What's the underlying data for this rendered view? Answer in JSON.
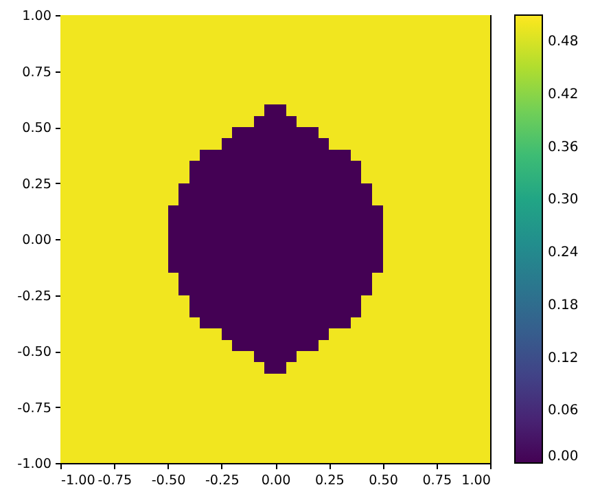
{
  "chart_data": {
    "type": "heatmap",
    "xlim": [
      -1,
      1
    ],
    "ylim": [
      -1,
      1
    ],
    "xticks": [
      {
        "value": -1,
        "label": "-1.00"
      },
      {
        "value": -0.75,
        "label": "-0.75"
      },
      {
        "value": -0.5,
        "label": "-0.50"
      },
      {
        "value": -0.25,
        "label": "-0.25"
      },
      {
        "value": 0,
        "label": "0.00"
      },
      {
        "value": 0.25,
        "label": "0.25"
      },
      {
        "value": 0.5,
        "label": "0.50"
      },
      {
        "value": 0.75,
        "label": "0.75"
      },
      {
        "value": 1,
        "label": "1.00"
      }
    ],
    "yticks": [
      {
        "value": -1,
        "label": "-1.00"
      },
      {
        "value": -0.75,
        "label": "-0.75"
      },
      {
        "value": -0.5,
        "label": "-0.50"
      },
      {
        "value": -0.25,
        "label": "-0.25"
      },
      {
        "value": 0,
        "label": "0.00"
      },
      {
        "value": 0.25,
        "label": "0.25"
      },
      {
        "value": 0.5,
        "label": "0.50"
      },
      {
        "value": 0.75,
        "label": "0.75"
      },
      {
        "value": 1,
        "label": "1.00"
      }
    ],
    "clim": [
      0,
      0.51
    ],
    "cticks": [
      {
        "value": 0,
        "label": "0.00"
      },
      {
        "value": 0.06,
        "label": "0.06"
      },
      {
        "value": 0.12,
        "label": "0.12"
      },
      {
        "value": 0.18,
        "label": "0.18"
      },
      {
        "value": 0.24,
        "label": "0.24"
      },
      {
        "value": 0.3,
        "label": "0.30"
      },
      {
        "value": 0.36,
        "label": "0.36"
      },
      {
        "value": 0.42,
        "label": "0.42"
      },
      {
        "value": 0.48,
        "label": "0.48"
      }
    ],
    "cells": [
      [
        0.5,
        0.5,
        0.5,
        0.5,
        0.5,
        0.5,
        0.5,
        0.5,
        0.5,
        0.5,
        0.5,
        0.5,
        0.5,
        0.5,
        0.5,
        0.5,
        0.5,
        0.5,
        0.5,
        0.5,
        0.5,
        0.5,
        0.5,
        0.5,
        0.5,
        0.5,
        0.5,
        0.5,
        0.5,
        0.5,
        0.5,
        0.5,
        0.5,
        0.5,
        0.5,
        0.5,
        0.5,
        0.5,
        0.5,
        0.5
      ],
      [
        0.5,
        0.5,
        0.5,
        0.5,
        0.5,
        0.5,
        0.5,
        0.5,
        0.5,
        0.5,
        0.5,
        0.5,
        0.5,
        0.5,
        0.5,
        0.5,
        0.5,
        0.5,
        0.5,
        0.5,
        0.5,
        0.5,
        0.5,
        0.5,
        0.5,
        0.5,
        0.5,
        0.5,
        0.5,
        0.5,
        0.5,
        0.5,
        0.5,
        0.5,
        0.5,
        0.5,
        0.5,
        0.5,
        0.5,
        0.5
      ],
      [
        0.5,
        0.5,
        0.5,
        0.5,
        0.5,
        0.5,
        0.5,
        0.5,
        0.5,
        0.5,
        0.5,
        0.5,
        0.5,
        0.5,
        0.5,
        0.5,
        0.5,
        0.5,
        0.5,
        0.5,
        0.5,
        0.5,
        0.5,
        0.5,
        0.5,
        0.5,
        0.5,
        0.5,
        0.5,
        0.5,
        0.5,
        0.5,
        0.5,
        0.5,
        0.5,
        0.5,
        0.5,
        0.5,
        0.5,
        0.5
      ],
      [
        0.5,
        0.5,
        0.5,
        0.5,
        0.5,
        0.5,
        0.5,
        0.5,
        0.5,
        0.5,
        0.5,
        0.5,
        0.5,
        0.5,
        0.5,
        0.5,
        0.5,
        0.5,
        0.5,
        0.5,
        0.5,
        0.5,
        0.5,
        0.5,
        0.5,
        0.5,
        0.5,
        0.5,
        0.5,
        0.5,
        0.5,
        0.5,
        0.5,
        0.5,
        0.5,
        0.5,
        0.5,
        0.5,
        0.5,
        0.5
      ],
      [
        0.5,
        0.5,
        0.5,
        0.5,
        0.5,
        0.5,
        0.5,
        0.5,
        0.5,
        0.5,
        0.5,
        0.5,
        0.5,
        0.5,
        0.5,
        0.5,
        0.5,
        0.5,
        0.5,
        0.5,
        0.5,
        0.5,
        0.5,
        0.5,
        0.5,
        0.5,
        0.5,
        0.5,
        0.5,
        0.5,
        0.5,
        0.5,
        0.5,
        0.5,
        0.5,
        0.5,
        0.5,
        0.5,
        0.5,
        0.5
      ],
      [
        0.5,
        0.5,
        0.5,
        0.5,
        0.5,
        0.5,
        0.5,
        0.5,
        0.5,
        0.5,
        0.5,
        0.5,
        0.5,
        0.5,
        0.5,
        0.5,
        0.5,
        0.5,
        0.5,
        0.5,
        0.5,
        0.5,
        0.5,
        0.5,
        0.5,
        0.5,
        0.5,
        0.5,
        0.5,
        0.5,
        0.5,
        0.5,
        0.5,
        0.5,
        0.5,
        0.5,
        0.5,
        0.5,
        0.5,
        0.5
      ],
      [
        0.5,
        0.5,
        0.5,
        0.5,
        0.5,
        0.5,
        0.5,
        0.5,
        0.5,
        0.5,
        0.5,
        0.5,
        0.5,
        0.5,
        0.5,
        0.5,
        0.5,
        0.5,
        0.5,
        0.5,
        0.5,
        0.5,
        0.5,
        0.5,
        0.5,
        0.5,
        0.5,
        0.5,
        0.5,
        0.5,
        0.5,
        0.5,
        0.5,
        0.5,
        0.5,
        0.5,
        0.5,
        0.5,
        0.5,
        0.5
      ],
      [
        0.5,
        0.5,
        0.5,
        0.5,
        0.5,
        0.5,
        0.5,
        0.5,
        0.5,
        0.5,
        0.5,
        0.5,
        0.5,
        0.5,
        0.5,
        0.5,
        0.5,
        0.5,
        0.5,
        0.5,
        0.5,
        0.5,
        0.5,
        0.5,
        0.5,
        0.5,
        0.5,
        0.5,
        0.5,
        0.5,
        0.5,
        0.5,
        0.5,
        0.5,
        0.5,
        0.5,
        0.5,
        0.5,
        0.5,
        0.5
      ],
      [
        0.5,
        0.5,
        0.5,
        0.5,
        0.5,
        0.5,
        0.5,
        0.5,
        0.5,
        0.5,
        0.5,
        0.5,
        0.5,
        0.5,
        0.5,
        0.5,
        0.5,
        0.5,
        0.5,
        0,
        0,
        0.5,
        0.5,
        0.5,
        0.5,
        0.5,
        0.5,
        0.5,
        0.5,
        0.5,
        0.5,
        0.5,
        0.5,
        0.5,
        0.5,
        0.5,
        0.5,
        0.5,
        0.5,
        0.5
      ],
      [
        0.5,
        0.5,
        0.5,
        0.5,
        0.5,
        0.5,
        0.5,
        0.5,
        0.5,
        0.5,
        0.5,
        0.5,
        0.5,
        0.5,
        0.5,
        0.5,
        0.5,
        0.5,
        0,
        0,
        0,
        0,
        0.5,
        0.5,
        0.5,
        0.5,
        0.5,
        0.5,
        0.5,
        0.5,
        0.5,
        0.5,
        0.5,
        0.5,
        0.5,
        0.5,
        0.5,
        0.5,
        0.5,
        0.5
      ],
      [
        0.5,
        0.5,
        0.5,
        0.5,
        0.5,
        0.5,
        0.5,
        0.5,
        0.5,
        0.5,
        0.5,
        0.5,
        0.5,
        0.5,
        0.5,
        0.5,
        0,
        0,
        0,
        0,
        0,
        0,
        0,
        0,
        0.5,
        0.5,
        0.5,
        0.5,
        0.5,
        0.5,
        0.5,
        0.5,
        0.5,
        0.5,
        0.5,
        0.5,
        0.5,
        0.5,
        0.5,
        0.5
      ],
      [
        0.5,
        0.5,
        0.5,
        0.5,
        0.5,
        0.5,
        0.5,
        0.5,
        0.5,
        0.5,
        0.5,
        0.5,
        0.5,
        0.5,
        0.5,
        0,
        0,
        0,
        0,
        0,
        0,
        0,
        0,
        0,
        0,
        0.5,
        0.5,
        0.5,
        0.5,
        0.5,
        0.5,
        0.5,
        0.5,
        0.5,
        0.5,
        0.5,
        0.5,
        0.5,
        0.5,
        0.5
      ],
      [
        0.5,
        0.5,
        0.5,
        0.5,
        0.5,
        0.5,
        0.5,
        0.5,
        0.5,
        0.5,
        0.5,
        0.5,
        0.5,
        0,
        0,
        0,
        0,
        0,
        0,
        0,
        0,
        0,
        0,
        0,
        0,
        0,
        0,
        0.5,
        0.5,
        0.5,
        0.5,
        0.5,
        0.5,
        0.5,
        0.5,
        0.5,
        0.5,
        0.5,
        0.5,
        0.5
      ],
      [
        0.5,
        0.5,
        0.5,
        0.5,
        0.5,
        0.5,
        0.5,
        0.5,
        0.5,
        0.5,
        0.5,
        0.5,
        0,
        0,
        0,
        0,
        0,
        0,
        0,
        0,
        0,
        0,
        0,
        0,
        0,
        0,
        0,
        0,
        0.5,
        0.5,
        0.5,
        0.5,
        0.5,
        0.5,
        0.5,
        0.5,
        0.5,
        0.5,
        0.5,
        0.5
      ],
      [
        0.5,
        0.5,
        0.5,
        0.5,
        0.5,
        0.5,
        0.5,
        0.5,
        0.5,
        0.5,
        0.5,
        0.5,
        0,
        0,
        0,
        0,
        0,
        0,
        0,
        0,
        0,
        0,
        0,
        0,
        0,
        0,
        0,
        0,
        0.5,
        0.5,
        0.5,
        0.5,
        0.5,
        0.5,
        0.5,
        0.5,
        0.5,
        0.5,
        0.5,
        0.5
      ],
      [
        0.5,
        0.5,
        0.5,
        0.5,
        0.5,
        0.5,
        0.5,
        0.5,
        0.5,
        0.5,
        0.5,
        0,
        0,
        0,
        0,
        0,
        0,
        0,
        0,
        0,
        0,
        0,
        0,
        0,
        0,
        0,
        0,
        0,
        0,
        0.5,
        0.5,
        0.5,
        0.5,
        0.5,
        0.5,
        0.5,
        0.5,
        0.5,
        0.5,
        0.5
      ],
      [
        0.5,
        0.5,
        0.5,
        0.5,
        0.5,
        0.5,
        0.5,
        0.5,
        0.5,
        0.5,
        0.5,
        0,
        0,
        0,
        0,
        0,
        0,
        0,
        0,
        0,
        0,
        0,
        0,
        0,
        0,
        0,
        0,
        0,
        0,
        0.5,
        0.5,
        0.5,
        0.5,
        0.5,
        0.5,
        0.5,
        0.5,
        0.5,
        0.5,
        0.5
      ],
      [
        0.5,
        0.5,
        0.5,
        0.5,
        0.5,
        0.5,
        0.5,
        0.5,
        0.5,
        0.5,
        0,
        0,
        0,
        0,
        0,
        0,
        0,
        0,
        0,
        0,
        0,
        0,
        0,
        0,
        0,
        0,
        0,
        0,
        0,
        0,
        0.5,
        0.5,
        0.5,
        0.5,
        0.5,
        0.5,
        0.5,
        0.5,
        0.5,
        0.5
      ],
      [
        0.5,
        0.5,
        0.5,
        0.5,
        0.5,
        0.5,
        0.5,
        0.5,
        0.5,
        0.5,
        0,
        0,
        0,
        0,
        0,
        0,
        0,
        0,
        0,
        0,
        0,
        0,
        0,
        0,
        0,
        0,
        0,
        0,
        0,
        0,
        0.5,
        0.5,
        0.5,
        0.5,
        0.5,
        0.5,
        0.5,
        0.5,
        0.5,
        0.5
      ],
      [
        0.5,
        0.5,
        0.5,
        0.5,
        0.5,
        0.5,
        0.5,
        0.5,
        0.5,
        0.5,
        0,
        0,
        0,
        0,
        0,
        0,
        0,
        0,
        0,
        0,
        0,
        0,
        0,
        0,
        0,
        0,
        0,
        0,
        0,
        0,
        0.5,
        0.5,
        0.5,
        0.5,
        0.5,
        0.5,
        0.5,
        0.5,
        0.5,
        0.5
      ],
      [
        0.5,
        0.5,
        0.5,
        0.5,
        0.5,
        0.5,
        0.5,
        0.5,
        0.5,
        0.5,
        0,
        0,
        0,
        0,
        0,
        0,
        0,
        0,
        0,
        0,
        0,
        0,
        0,
        0,
        0,
        0,
        0,
        0,
        0,
        0,
        0.5,
        0.5,
        0.5,
        0.5,
        0.5,
        0.5,
        0.5,
        0.5,
        0.5,
        0.5
      ],
      [
        0.5,
        0.5,
        0.5,
        0.5,
        0.5,
        0.5,
        0.5,
        0.5,
        0.5,
        0.5,
        0,
        0,
        0,
        0,
        0,
        0,
        0,
        0,
        0,
        0,
        0,
        0,
        0,
        0,
        0,
        0,
        0,
        0,
        0,
        0,
        0.5,
        0.5,
        0.5,
        0.5,
        0.5,
        0.5,
        0.5,
        0.5,
        0.5,
        0.5
      ],
      [
        0.5,
        0.5,
        0.5,
        0.5,
        0.5,
        0.5,
        0.5,
        0.5,
        0.5,
        0.5,
        0,
        0,
        0,
        0,
        0,
        0,
        0,
        0,
        0,
        0,
        0,
        0,
        0,
        0,
        0,
        0,
        0,
        0,
        0,
        0,
        0.5,
        0.5,
        0.5,
        0.5,
        0.5,
        0.5,
        0.5,
        0.5,
        0.5,
        0.5
      ],
      [
        0.5,
        0.5,
        0.5,
        0.5,
        0.5,
        0.5,
        0.5,
        0.5,
        0.5,
        0.5,
        0.5,
        0,
        0,
        0,
        0,
        0,
        0,
        0,
        0,
        0,
        0,
        0,
        0,
        0,
        0,
        0,
        0,
        0,
        0,
        0.5,
        0.5,
        0.5,
        0.5,
        0.5,
        0.5,
        0.5,
        0.5,
        0.5,
        0.5,
        0.5
      ],
      [
        0.5,
        0.5,
        0.5,
        0.5,
        0.5,
        0.5,
        0.5,
        0.5,
        0.5,
        0.5,
        0.5,
        0,
        0,
        0,
        0,
        0,
        0,
        0,
        0,
        0,
        0,
        0,
        0,
        0,
        0,
        0,
        0,
        0,
        0,
        0.5,
        0.5,
        0.5,
        0.5,
        0.5,
        0.5,
        0.5,
        0.5,
        0.5,
        0.5,
        0.5
      ],
      [
        0.5,
        0.5,
        0.5,
        0.5,
        0.5,
        0.5,
        0.5,
        0.5,
        0.5,
        0.5,
        0.5,
        0.5,
        0,
        0,
        0,
        0,
        0,
        0,
        0,
        0,
        0,
        0,
        0,
        0,
        0,
        0,
        0,
        0,
        0.5,
        0.5,
        0.5,
        0.5,
        0.5,
        0.5,
        0.5,
        0.5,
        0.5,
        0.5,
        0.5,
        0.5
      ],
      [
        0.5,
        0.5,
        0.5,
        0.5,
        0.5,
        0.5,
        0.5,
        0.5,
        0.5,
        0.5,
        0.5,
        0.5,
        0,
        0,
        0,
        0,
        0,
        0,
        0,
        0,
        0,
        0,
        0,
        0,
        0,
        0,
        0,
        0,
        0.5,
        0.5,
        0.5,
        0.5,
        0.5,
        0.5,
        0.5,
        0.5,
        0.5,
        0.5,
        0.5,
        0.5
      ],
      [
        0.5,
        0.5,
        0.5,
        0.5,
        0.5,
        0.5,
        0.5,
        0.5,
        0.5,
        0.5,
        0.5,
        0.5,
        0.5,
        0,
        0,
        0,
        0,
        0,
        0,
        0,
        0,
        0,
        0,
        0,
        0,
        0,
        0,
        0.5,
        0.5,
        0.5,
        0.5,
        0.5,
        0.5,
        0.5,
        0.5,
        0.5,
        0.5,
        0.5,
        0.5,
        0.5
      ],
      [
        0.5,
        0.5,
        0.5,
        0.5,
        0.5,
        0.5,
        0.5,
        0.5,
        0.5,
        0.5,
        0.5,
        0.5,
        0.5,
        0.5,
        0.5,
        0,
        0,
        0,
        0,
        0,
        0,
        0,
        0,
        0,
        0,
        0.5,
        0.5,
        0.5,
        0.5,
        0.5,
        0.5,
        0.5,
        0.5,
        0.5,
        0.5,
        0.5,
        0.5,
        0.5,
        0.5,
        0.5
      ],
      [
        0.5,
        0.5,
        0.5,
        0.5,
        0.5,
        0.5,
        0.5,
        0.5,
        0.5,
        0.5,
        0.5,
        0.5,
        0.5,
        0.5,
        0.5,
        0.5,
        0,
        0,
        0,
        0,
        0,
        0,
        0,
        0,
        0.5,
        0.5,
        0.5,
        0.5,
        0.5,
        0.5,
        0.5,
        0.5,
        0.5,
        0.5,
        0.5,
        0.5,
        0.5,
        0.5,
        0.5,
        0.5
      ],
      [
        0.5,
        0.5,
        0.5,
        0.5,
        0.5,
        0.5,
        0.5,
        0.5,
        0.5,
        0.5,
        0.5,
        0.5,
        0.5,
        0.5,
        0.5,
        0.5,
        0.5,
        0.5,
        0,
        0,
        0,
        0,
        0.5,
        0.5,
        0.5,
        0.5,
        0.5,
        0.5,
        0.5,
        0.5,
        0.5,
        0.5,
        0.5,
        0.5,
        0.5,
        0.5,
        0.5,
        0.5,
        0.5,
        0.5
      ],
      [
        0.5,
        0.5,
        0.5,
        0.5,
        0.5,
        0.5,
        0.5,
        0.5,
        0.5,
        0.5,
        0.5,
        0.5,
        0.5,
        0.5,
        0.5,
        0.5,
        0.5,
        0.5,
        0.5,
        0,
        0,
        0.5,
        0.5,
        0.5,
        0.5,
        0.5,
        0.5,
        0.5,
        0.5,
        0.5,
        0.5,
        0.5,
        0.5,
        0.5,
        0.5,
        0.5,
        0.5,
        0.5,
        0.5,
        0.5
      ],
      [
        0.5,
        0.5,
        0.5,
        0.5,
        0.5,
        0.5,
        0.5,
        0.5,
        0.5,
        0.5,
        0.5,
        0.5,
        0.5,
        0.5,
        0.5,
        0.5,
        0.5,
        0.5,
        0.5,
        0.5,
        0.5,
        0.5,
        0.5,
        0.5,
        0.5,
        0.5,
        0.5,
        0.5,
        0.5,
        0.5,
        0.5,
        0.5,
        0.5,
        0.5,
        0.5,
        0.5,
        0.5,
        0.5,
        0.5,
        0.5
      ],
      [
        0.5,
        0.5,
        0.5,
        0.5,
        0.5,
        0.5,
        0.5,
        0.5,
        0.5,
        0.5,
        0.5,
        0.5,
        0.5,
        0.5,
        0.5,
        0.5,
        0.5,
        0.5,
        0.5,
        0.5,
        0.5,
        0.5,
        0.5,
        0.5,
        0.5,
        0.5,
        0.5,
        0.5,
        0.5,
        0.5,
        0.5,
        0.5,
        0.5,
        0.5,
        0.5,
        0.5,
        0.5,
        0.5,
        0.5,
        0.5
      ],
      [
        0.5,
        0.5,
        0.5,
        0.5,
        0.5,
        0.5,
        0.5,
        0.5,
        0.5,
        0.5,
        0.5,
        0.5,
        0.5,
        0.5,
        0.5,
        0.5,
        0.5,
        0.5,
        0.5,
        0.5,
        0.5,
        0.5,
        0.5,
        0.5,
        0.5,
        0.5,
        0.5,
        0.5,
        0.5,
        0.5,
        0.5,
        0.5,
        0.5,
        0.5,
        0.5,
        0.5,
        0.5,
        0.5,
        0.5,
        0.5
      ],
      [
        0.5,
        0.5,
        0.5,
        0.5,
        0.5,
        0.5,
        0.5,
        0.5,
        0.5,
        0.5,
        0.5,
        0.5,
        0.5,
        0.5,
        0.5,
        0.5,
        0.5,
        0.5,
        0.5,
        0.5,
        0.5,
        0.5,
        0.5,
        0.5,
        0.5,
        0.5,
        0.5,
        0.5,
        0.5,
        0.5,
        0.5,
        0.5,
        0.5,
        0.5,
        0.5,
        0.5,
        0.5,
        0.5,
        0.5,
        0.5
      ],
      [
        0.5,
        0.5,
        0.5,
        0.5,
        0.5,
        0.5,
        0.5,
        0.5,
        0.5,
        0.5,
        0.5,
        0.5,
        0.5,
        0.5,
        0.5,
        0.5,
        0.5,
        0.5,
        0.5,
        0.5,
        0.5,
        0.5,
        0.5,
        0.5,
        0.5,
        0.5,
        0.5,
        0.5,
        0.5,
        0.5,
        0.5,
        0.5,
        0.5,
        0.5,
        0.5,
        0.5,
        0.5,
        0.5,
        0.5,
        0.5
      ],
      [
        0.5,
        0.5,
        0.5,
        0.5,
        0.5,
        0.5,
        0.5,
        0.5,
        0.5,
        0.5,
        0.5,
        0.5,
        0.5,
        0.5,
        0.5,
        0.5,
        0.5,
        0.5,
        0.5,
        0.5,
        0.5,
        0.5,
        0.5,
        0.5,
        0.5,
        0.5,
        0.5,
        0.5,
        0.5,
        0.5,
        0.5,
        0.5,
        0.5,
        0.5,
        0.5,
        0.5,
        0.5,
        0.5,
        0.5,
        0.5
      ],
      [
        0.5,
        0.5,
        0.5,
        0.5,
        0.5,
        0.5,
        0.5,
        0.5,
        0.5,
        0.5,
        0.5,
        0.5,
        0.5,
        0.5,
        0.5,
        0.5,
        0.5,
        0.5,
        0.5,
        0.5,
        0.5,
        0.5,
        0.5,
        0.5,
        0.5,
        0.5,
        0.5,
        0.5,
        0.5,
        0.5,
        0.5,
        0.5,
        0.5,
        0.5,
        0.5,
        0.5,
        0.5,
        0.5,
        0.5,
        0.5
      ],
      [
        0.5,
        0.5,
        0.5,
        0.5,
        0.5,
        0.5,
        0.5,
        0.5,
        0.5,
        0.5,
        0.5,
        0.5,
        0.5,
        0.5,
        0.5,
        0.5,
        0.5,
        0.5,
        0.5,
        0.5,
        0.5,
        0.5,
        0.5,
        0.5,
        0.5,
        0.5,
        0.5,
        0.5,
        0.5,
        0.5,
        0.5,
        0.5,
        0.5,
        0.5,
        0.5,
        0.5,
        0.5,
        0.5,
        0.5,
        0.5
      ]
    ]
  }
}
